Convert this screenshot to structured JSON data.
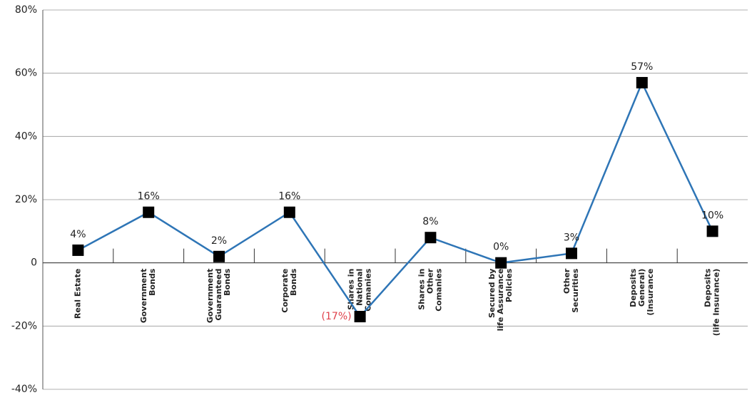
{
  "chart_data": {
    "type": "line",
    "categories": [
      [
        "Real Estate"
      ],
      [
        "Government",
        "Bonds"
      ],
      [
        "Government",
        "Guaranteed",
        "Bonds"
      ],
      [
        "Corporate",
        "Bonds"
      ],
      [
        "Shares in",
        "National",
        "Comanies"
      ],
      [
        "Shares in",
        "Other",
        "Comanies"
      ],
      [
        "Secured by",
        "life Assurance",
        "Policies"
      ],
      [
        "Other",
        "Securities"
      ],
      [
        "Deposits",
        "General)",
        "(Insurance"
      ],
      [
        "Deposits",
        "(life Insurance)"
      ]
    ],
    "series": [
      {
        "color": "#2e75b6",
        "values": [
          4,
          16,
          2,
          16,
          -17,
          8,
          0,
          3,
          57,
          10
        ],
        "value_labels": [
          "4%",
          "16%",
          "2%",
          "16%",
          "(17%)",
          "8%",
          "0%",
          "3%",
          "57%",
          "10%"
        ]
      }
    ],
    "ylim": [
      -40,
      80
    ],
    "yticks": [
      {
        "value": -40,
        "label": "-40%"
      },
      {
        "value": -20,
        "label": "-20%"
      },
      0,
      {
        "value": 20,
        "label": "20%"
      },
      {
        "value": 40,
        "label": "40%"
      },
      {
        "value": 60,
        "label": "60%"
      },
      {
        "value": 80,
        "label": "80%"
      }
    ],
    "grid": true
  }
}
